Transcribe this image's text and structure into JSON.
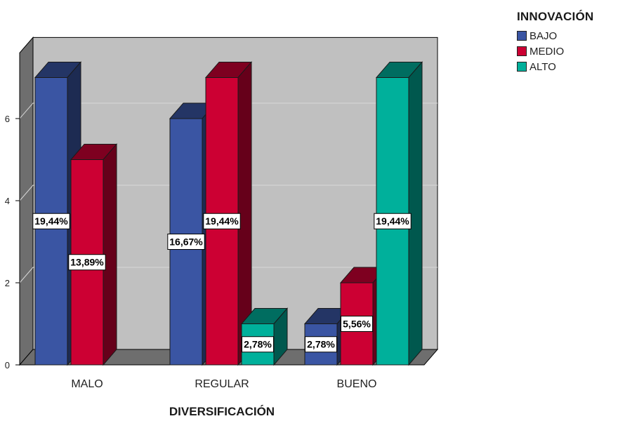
{
  "chart_data": {
    "type": "bar",
    "title": "",
    "xlabel": "DIVERSIFICACIÓN",
    "ylabel": "",
    "categories": [
      "MALO",
      "REGULAR",
      "BUENO"
    ],
    "series": [
      {
        "name": "BAJO",
        "color": "#3a55a3",
        "values": [
          7,
          6,
          1
        ],
        "labels": [
          "19,44%",
          "16,67%",
          "2,78%"
        ]
      },
      {
        "name": "MEDIO",
        "color": "#cc0033",
        "values": [
          5,
          7,
          2
        ],
        "labels": [
          "13,89%",
          "19,44%",
          "5,56%"
        ]
      },
      {
        "name": "ALTO",
        "color": "#00b09b",
        "values": [
          0,
          1,
          7
        ],
        "labels": [
          "",
          "2,78%",
          "19,44%"
        ]
      }
    ],
    "yticks": [
      0,
      2,
      4,
      6
    ],
    "ylim": [
      0,
      7.6
    ],
    "grid": true,
    "legend_title": "INNOVACIÓN",
    "legend_position": "top-right"
  }
}
